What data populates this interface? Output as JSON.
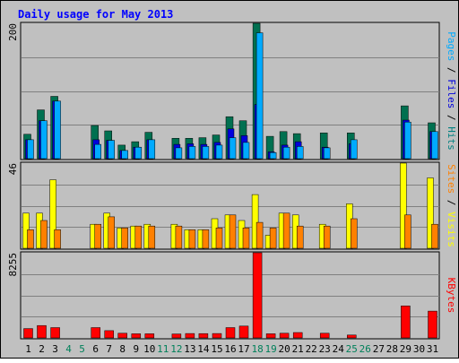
{
  "chart_data": [
    {
      "type": "bar",
      "title": "Daily usage for May 2013",
      "ymax_label": "200",
      "ylabel_parts": [
        {
          "text": "Pages",
          "color": "#00AAFF"
        },
        {
          "text": " / ",
          "color": "#000000"
        },
        {
          "text": "Files",
          "color": "#0000DD"
        },
        {
          "text": " / ",
          "color": "#000000"
        },
        {
          "text": "Hits",
          "color": "#008080"
        }
      ],
      "categories": [
        "1",
        "2",
        "3",
        "4",
        "5",
        "6",
        "7",
        "8",
        "9",
        "10",
        "11",
        "12",
        "13",
        "14",
        "15",
        "16",
        "17",
        "18",
        "19",
        "20",
        "21",
        "22",
        "23",
        "24",
        "25",
        "26",
        "27",
        "28",
        "29",
        "30",
        "31"
      ],
      "ylim": [
        0,
        200
      ],
      "series": [
        {
          "name": "Hits",
          "color": "#007050",
          "values": [
            36,
            72,
            92,
            0,
            0,
            49,
            41,
            20,
            25,
            39,
            0,
            30,
            30,
            31,
            35,
            62,
            56,
            200,
            33,
            40,
            37,
            0,
            38,
            0,
            38,
            0,
            0,
            0,
            78,
            0,
            53
          ]
        },
        {
          "name": "Files",
          "color": "#0000DD",
          "values": [
            28,
            56,
            85,
            0,
            0,
            28,
            27,
            12,
            17,
            28,
            0,
            21,
            22,
            21,
            24,
            44,
            34,
            80,
            10,
            20,
            25,
            0,
            17,
            0,
            22,
            0,
            0,
            0,
            57,
            0,
            40
          ]
        },
        {
          "name": "Pages",
          "color": "#00AAFF",
          "values": [
            28,
            56,
            85,
            0,
            0,
            21,
            27,
            12,
            17,
            28,
            0,
            16,
            18,
            18,
            20,
            31,
            24,
            186,
            9,
            17,
            18,
            0,
            16,
            0,
            28,
            0,
            0,
            0,
            54,
            0,
            40
          ]
        }
      ]
    },
    {
      "type": "bar",
      "ymax_label": "46",
      "ylabel_parts": [
        {
          "text": "Sites",
          "color": "#FF8000"
        },
        {
          "text": " / ",
          "color": "#000000"
        },
        {
          "text": "Visits",
          "color": "#FFFF00"
        }
      ],
      "categories": [
        "1",
        "2",
        "3",
        "4",
        "5",
        "6",
        "7",
        "8",
        "9",
        "10",
        "11",
        "12",
        "13",
        "14",
        "15",
        "16",
        "17",
        "18",
        "19",
        "20",
        "21",
        "22",
        "23",
        "24",
        "25",
        "26",
        "27",
        "28",
        "29",
        "30",
        "31"
      ],
      "ylim": [
        0,
        46
      ],
      "series": [
        {
          "name": "Visits",
          "color": "#FFFF00",
          "values": [
            19,
            19,
            37,
            0,
            0,
            13,
            19,
            11,
            12,
            13,
            0,
            13,
            10,
            10,
            16,
            18,
            15,
            29,
            7,
            19,
            18,
            0,
            13,
            0,
            24,
            0,
            0,
            0,
            46,
            0,
            38
          ]
        },
        {
          "name": "Sites",
          "color": "#FF8000",
          "values": [
            10,
            15,
            10,
            0,
            0,
            13,
            17,
            11,
            12,
            12,
            0,
            12,
            10,
            10,
            11,
            18,
            11,
            14,
            11,
            19,
            12,
            0,
            12,
            0,
            16,
            0,
            0,
            0,
            18,
            0,
            13
          ]
        }
      ]
    },
    {
      "type": "bar",
      "ymax_label": "8255",
      "ylabel_parts": [
        {
          "text": "KBytes",
          "color": "#FF0000"
        }
      ],
      "categories": [
        "1",
        "2",
        "3",
        "4",
        "5",
        "6",
        "7",
        "8",
        "9",
        "10",
        "11",
        "12",
        "13",
        "14",
        "15",
        "16",
        "17",
        "18",
        "19",
        "20",
        "21",
        "22",
        "23",
        "24",
        "25",
        "26",
        "27",
        "28",
        "29",
        "30",
        "31"
      ],
      "ylim": [
        0,
        8255
      ],
      "series": [
        {
          "name": "KBytes",
          "color": "#FF0000",
          "values": [
            900,
            1200,
            1000,
            0,
            0,
            1000,
            700,
            450,
            400,
            400,
            0,
            380,
            430,
            420,
            430,
            1000,
            1150,
            8255,
            400,
            450,
            520,
            0,
            450,
            0,
            280,
            0,
            0,
            0,
            3100,
            0,
            2600
          ]
        }
      ]
    }
  ],
  "weekend_days": [
    4,
    5,
    11,
    12,
    18,
    19,
    25,
    26
  ],
  "colors": {
    "background": "#C0C0C0",
    "title": "#0000FF",
    "weekday_label": "#000000",
    "weekend_label": "#00805A",
    "grid": "#808080"
  }
}
